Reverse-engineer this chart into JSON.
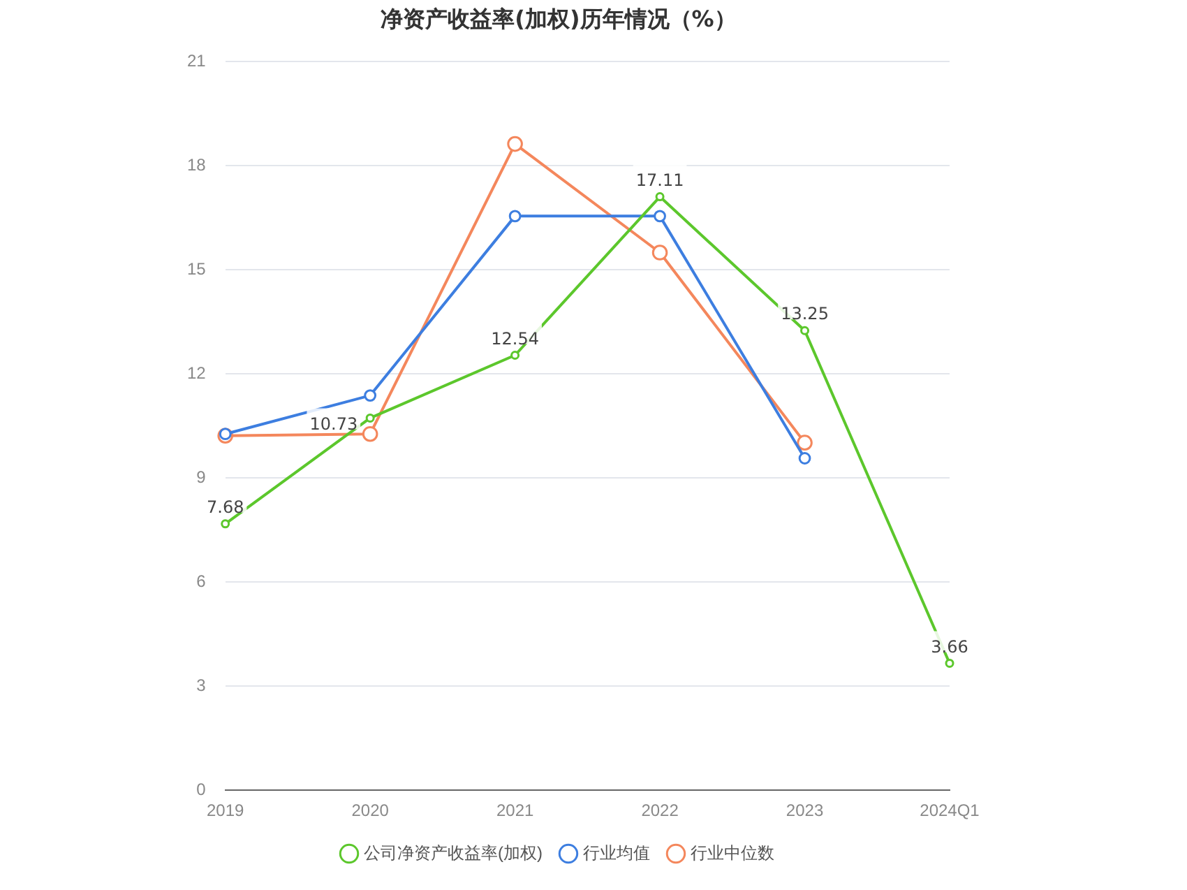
{
  "chart_data": {
    "type": "line",
    "title": "净资产收益率(加权)历年情况（%）",
    "categories": [
      "2019",
      "2020",
      "2021",
      "2022",
      "2023",
      "2024Q1"
    ],
    "series": [
      {
        "name": "公司净资产收益率(加权)",
        "color": "#5cc72c",
        "values": [
          7.68,
          10.73,
          12.54,
          17.11,
          13.25,
          3.66
        ],
        "value_labels": [
          "7.68",
          "10.73",
          "12.54",
          "17.11",
          "13.25",
          "3.66"
        ]
      },
      {
        "name": "行业均值",
        "color": "#3d7ee0",
        "values": [
          10.27,
          11.38,
          16.55,
          16.55,
          9.57,
          null
        ]
      },
      {
        "name": "行业中位数",
        "color": "#f4875c",
        "values": [
          10.22,
          10.27,
          18.63,
          15.5,
          10.02,
          null
        ]
      }
    ],
    "ylim": [
      0,
      21
    ],
    "yticks": [
      0,
      3,
      6,
      9,
      12,
      15,
      18,
      21
    ],
    "grid": "y",
    "legend": "bottom",
    "marker": "circle",
    "line_style": "solid"
  }
}
